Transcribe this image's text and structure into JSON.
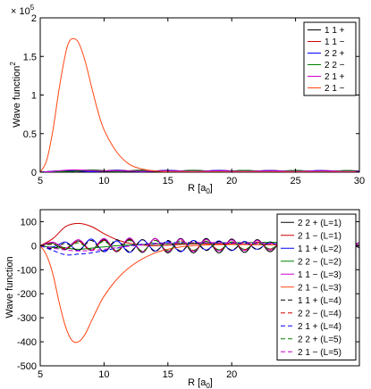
{
  "chart_data": [
    {
      "type": "line",
      "xlabel": "R [a",
      "xlabel_sub": "0",
      "xlabel_end": "]",
      "ylabel": "Wave function",
      "ylabel_sup": "2",
      "xlim": [
        5,
        30
      ],
      "ylim": [
        0,
        200000
      ],
      "xticks": [
        5,
        10,
        15,
        20,
        25,
        30
      ],
      "yticks": [
        0,
        50000,
        100000,
        150000,
        200000
      ],
      "ytick_labels": [
        "0",
        "0.5",
        "1",
        "1.5",
        "2"
      ],
      "multiplier_base": "× 10",
      "multiplier_exp": "5",
      "legend_position": "top-right",
      "series": [
        {
          "name": "1 1 +",
          "color": "#000000",
          "dash": "",
          "x": [
            5,
            7,
            9,
            11,
            13,
            15,
            17,
            19,
            21,
            23,
            25,
            27,
            29,
            30
          ],
          "y": [
            0,
            1500,
            2800,
            1200,
            2600,
            800,
            2400,
            900,
            2300,
            1000,
            2200,
            900,
            2100,
            1500
          ]
        },
        {
          "name": "1 1 −",
          "color": "#cc0000",
          "dash": "",
          "x": [
            5,
            7,
            9,
            11,
            13,
            15,
            17,
            19,
            21,
            23,
            25,
            27,
            29,
            30
          ],
          "y": [
            0,
            2000,
            800,
            2600,
            900,
            2400,
            700,
            2500,
            800,
            2300,
            900,
            2200,
            800,
            1200
          ]
        },
        {
          "name": "2 2 +",
          "color": "#0000ff",
          "dash": "",
          "x": [
            5,
            7,
            9,
            11,
            13,
            15,
            17,
            19,
            21,
            23,
            25,
            27,
            29,
            30
          ],
          "y": [
            0,
            2200,
            600,
            2400,
            600,
            2300,
            600,
            2300,
            600,
            2200,
            600,
            2200,
            600,
            1600
          ]
        },
        {
          "name": "2 2 −",
          "color": "#008000",
          "dash": "",
          "x": [
            5,
            7,
            9,
            11,
            13,
            15,
            17,
            19,
            21,
            23,
            25,
            27,
            29,
            30
          ],
          "y": [
            0,
            800,
            2300,
            700,
            2200,
            700,
            2200,
            700,
            2200,
            700,
            2100,
            700,
            2100,
            900
          ]
        },
        {
          "name": "2 1 +",
          "color": "#cc00cc",
          "dash": "",
          "x": [
            5,
            6,
            7,
            7.6,
            8.5,
            9.5,
            11,
            13,
            15,
            17,
            19,
            21,
            23,
            25,
            27,
            29,
            30
          ],
          "y": [
            0,
            800,
            2600,
            3000,
            2400,
            1300,
            1800,
            1000,
            1800,
            900,
            1700,
            900,
            1600,
            900,
            1600,
            800,
            1000
          ]
        },
        {
          "name": "2 1 −",
          "color": "#ff4411",
          "dash": "",
          "x": [
            5,
            5.5,
            6,
            6.5,
            7,
            7.3,
            7.6,
            8,
            8.5,
            9,
            9.5,
            10,
            11,
            12,
            13,
            14,
            15,
            16,
            30
          ],
          "y": [
            0,
            15000,
            55000,
            110000,
            155000,
            170000,
            173000,
            168000,
            145000,
            112000,
            80000,
            55000,
            26000,
            10000,
            4000,
            1500,
            500,
            200,
            0
          ]
        }
      ]
    },
    {
      "type": "line",
      "xlabel": "R [a",
      "xlabel_sub": "0",
      "xlabel_end": "]",
      "ylabel": "Wave function",
      "xlim": [
        5,
        30
      ],
      "ylim": [
        -500,
        150
      ],
      "xticks": [
        5,
        10,
        15,
        20
      ],
      "yticks": [
        -500,
        -400,
        -300,
        -200,
        -100,
        0,
        100
      ],
      "legend_position": "top-right",
      "series": [
        {
          "name": "2 2 + (L=1)",
          "color": "#000000",
          "dash": "",
          "x": [
            5,
            6,
            7,
            8,
            9,
            10,
            11,
            12,
            13,
            14,
            15,
            16,
            17,
            18,
            19,
            20,
            21,
            22,
            23,
            24,
            25,
            26,
            27,
            28,
            29,
            30
          ],
          "y": [
            0,
            10,
            -15,
            20,
            -20,
            25,
            -25,
            28,
            -28,
            30,
            -30,
            30,
            -30,
            30,
            -30,
            28,
            -28,
            25,
            -25,
            22,
            -22,
            20,
            -20,
            18,
            -18,
            15
          ]
        },
        {
          "name": "2 1 − (L=1)",
          "color": "#cc0000",
          "dash": "",
          "x": [
            5,
            6,
            7,
            8,
            9,
            10,
            11,
            12,
            13,
            14,
            15,
            16,
            17,
            18,
            19,
            20,
            21,
            22,
            23,
            24,
            25,
            26,
            27,
            28,
            29,
            30
          ],
          "y": [
            0,
            30,
            80,
            93,
            80,
            50,
            25,
            10,
            3,
            0,
            2,
            5,
            7,
            8,
            8,
            7,
            6,
            5,
            4,
            3,
            3,
            2,
            2,
            1,
            1,
            0
          ]
        },
        {
          "name": "1 1 + (L=2)",
          "color": "#0000ff",
          "dash": "",
          "x": [
            5,
            6,
            7,
            8,
            9,
            10,
            11,
            12,
            13,
            14,
            15,
            16,
            17,
            18,
            19,
            20,
            21,
            22,
            23,
            24,
            25,
            26,
            27,
            28,
            29,
            30
          ],
          "y": [
            0,
            -5,
            15,
            -20,
            28,
            -25,
            20,
            -28,
            25,
            -22,
            18,
            -25,
            22,
            -18,
            20,
            -20,
            18,
            -15,
            16,
            -14,
            13,
            -12,
            11,
            -10,
            9,
            -8
          ]
        },
        {
          "name": "2 2 − (L=2)",
          "color": "#008000",
          "dash": "",
          "x": [
            5,
            6,
            7,
            8,
            9,
            10,
            11,
            12,
            13,
            14,
            15,
            16,
            17,
            18,
            19,
            20,
            21,
            22,
            23,
            24,
            25,
            26,
            27,
            28,
            29,
            30
          ],
          "y": [
            0,
            -8,
            -10,
            -15,
            -10,
            -5,
            0,
            3,
            5,
            6,
            8,
            9,
            10,
            11,
            12,
            13,
            13,
            14,
            14,
            14,
            13,
            13,
            12,
            12,
            11,
            10
          ]
        },
        {
          "name": "1 1 − (L=3)",
          "color": "#cc00cc",
          "dash": "",
          "x": [
            5,
            6,
            7,
            8,
            9,
            10,
            11,
            12,
            13,
            14,
            15,
            16,
            17,
            18,
            19,
            20,
            21,
            22,
            23,
            24,
            25,
            26,
            27,
            28,
            29,
            30
          ],
          "y": [
            0,
            15,
            -10,
            25,
            -18,
            30,
            -22,
            32,
            -25,
            30,
            -25,
            28,
            -24,
            26,
            -22,
            24,
            -20,
            22,
            -18,
            20,
            -16,
            18,
            -14,
            16,
            -12,
            14
          ]
        },
        {
          "name": "2 1 − (L=3)",
          "color": "#ff4411",
          "dash": "",
          "x": [
            5,
            5.5,
            6,
            6.5,
            7,
            7.5,
            8,
            8.5,
            9,
            9.5,
            10,
            11,
            12,
            13,
            14,
            15,
            16,
            17,
            18,
            19,
            20,
            22,
            24,
            26,
            28,
            30
          ],
          "y": [
            0,
            -40,
            -120,
            -240,
            -340,
            -395,
            -400,
            -370,
            -315,
            -260,
            -210,
            -140,
            -90,
            -55,
            -30,
            -15,
            -5,
            0,
            3,
            4,
            5,
            4,
            3,
            2,
            1,
            0
          ]
        },
        {
          "name": "1 1 + (L=4)",
          "color": "#000000",
          "dash": "5,3",
          "x": [
            5,
            6,
            7,
            8,
            9,
            10,
            11,
            12,
            13,
            14,
            15,
            16,
            17,
            18,
            19,
            20,
            21,
            22,
            23,
            24,
            25,
            26,
            27,
            28,
            29,
            30
          ],
          "y": [
            0,
            -12,
            10,
            -20,
            22,
            -25,
            25,
            -25,
            25,
            -24,
            22,
            -22,
            20,
            -20,
            18,
            -18,
            16,
            -16,
            14,
            -14,
            12,
            -12,
            10,
            -10,
            8,
            -8
          ]
        },
        {
          "name": "2 2 − (L=4)",
          "color": "#cc0000",
          "dash": "5,3",
          "x": [
            5,
            6,
            7,
            8,
            9,
            10,
            11,
            12,
            13,
            14,
            15,
            16,
            17,
            18,
            19,
            20,
            21,
            22,
            23,
            24,
            25,
            26,
            27,
            28,
            29,
            30
          ],
          "y": [
            0,
            8,
            -12,
            18,
            -20,
            22,
            -24,
            24,
            -24,
            23,
            -22,
            21,
            -20,
            19,
            -18,
            17,
            -16,
            15,
            -14,
            13,
            -12,
            11,
            -10,
            9,
            -8,
            7
          ]
        },
        {
          "name": "2 1 + (L=4)",
          "color": "#0000ff",
          "dash": "5,3",
          "x": [
            5,
            6,
            7,
            8,
            9,
            10,
            11,
            12,
            13,
            14,
            15,
            16,
            17,
            18,
            19,
            20,
            21,
            22,
            23,
            24,
            25,
            26,
            27,
            28,
            29,
            30
          ],
          "y": [
            0,
            -20,
            -38,
            -35,
            -30,
            -20,
            -10,
            0,
            6,
            10,
            12,
            13,
            13,
            12,
            12,
            11,
            10,
            9,
            8,
            7,
            6,
            5,
            4,
            3,
            2,
            1
          ]
        },
        {
          "name": "2 2 + (L=5)",
          "color": "#008000",
          "dash": "5,3",
          "x": [
            5,
            6,
            7,
            8,
            9,
            10,
            11,
            12,
            13,
            14,
            15,
            16,
            17,
            18,
            19,
            20,
            21,
            22,
            23,
            24,
            25,
            26,
            27,
            28,
            29,
            30
          ],
          "y": [
            0,
            5,
            -8,
            12,
            -15,
            18,
            -20,
            22,
            -22,
            22,
            -21,
            20,
            -19,
            18,
            -17,
            16,
            -15,
            14,
            -13,
            12,
            -11,
            10,
            -9,
            8,
            -7,
            6
          ]
        },
        {
          "name": "2 1 − (L=5)",
          "color": "#cc00cc",
          "dash": "5,3",
          "x": [
            5,
            6,
            7,
            8,
            9,
            10,
            11,
            12,
            13,
            14,
            15,
            16,
            17,
            18,
            19,
            20,
            21,
            22,
            23,
            24,
            25,
            26,
            27,
            28,
            29,
            30
          ],
          "y": [
            0,
            -10,
            -18,
            -22,
            -20,
            -15,
            -8,
            -2,
            3,
            8,
            10,
            12,
            13,
            13,
            13,
            12,
            12,
            11,
            10,
            9,
            8,
            7,
            6,
            5,
            4,
            3
          ]
        }
      ]
    }
  ]
}
